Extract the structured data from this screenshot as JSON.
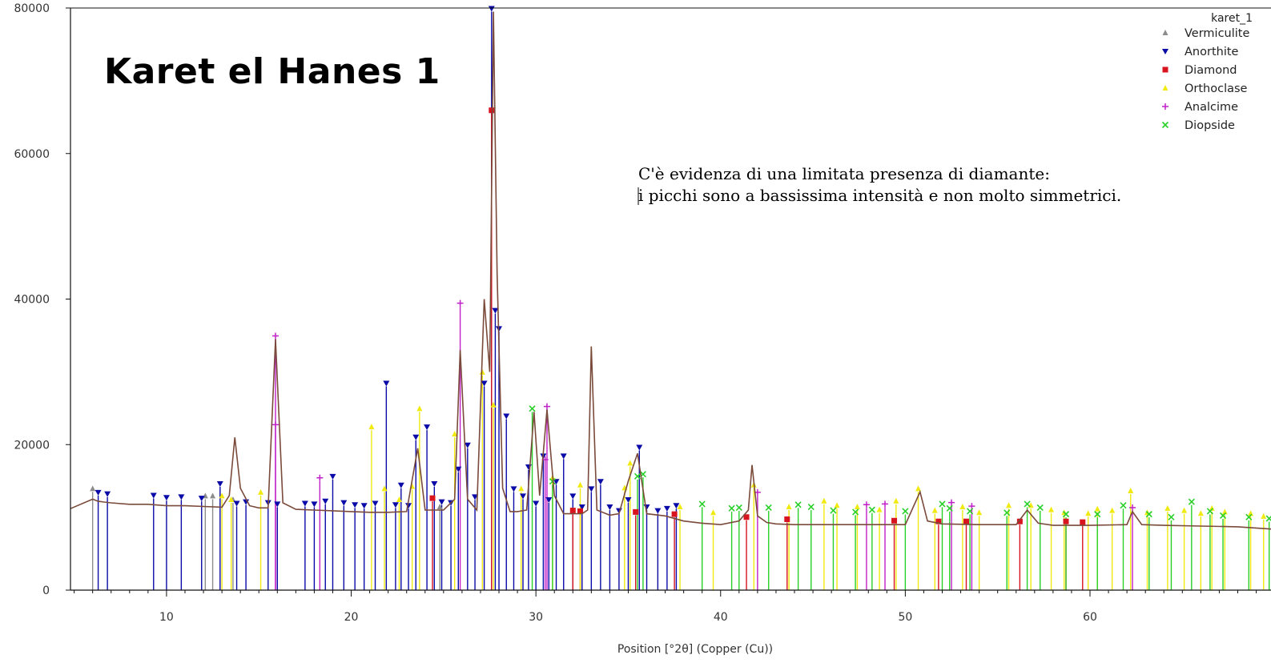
{
  "chart_data": {
    "type": "line",
    "title": "Karet el Hanes 1",
    "xlabel": "Position [°2θ] (Copper (Cu))",
    "ylabel": "",
    "xlim": [
      4.8,
      69.8
    ],
    "ylim": [
      0,
      80000
    ],
    "xticks": [
      10,
      20,
      30,
      40,
      50,
      60
    ],
    "yticks": [
      0,
      20000,
      40000,
      60000,
      80000
    ],
    "grid": false,
    "legend_placement": "top-right",
    "legend_title": "karet_1",
    "note_lines": [
      "C'è evidenza di una limitata presenza di diamante:",
      "i picchi sono a bassissima intensità e non molto simmetrici."
    ],
    "series": [
      {
        "name": "karet_1",
        "color": "#7a4a3a",
        "x": [
          4.8,
          6.0,
          6.3,
          7.0,
          8.0,
          9.0,
          10.0,
          11.0,
          12.0,
          13.0,
          13.4,
          13.7,
          14.0,
          14.5,
          15.0,
          15.5,
          15.9,
          16.3,
          17.0,
          18.0,
          19.0,
          20.0,
          21.0,
          22.0,
          23.0,
          23.6,
          24.0,
          25.0,
          25.6,
          25.9,
          26.3,
          26.8,
          27.2,
          27.5,
          27.7,
          27.9,
          28.2,
          28.6,
          29.0,
          29.5,
          29.9,
          30.2,
          30.6,
          31.0,
          31.5,
          32.0,
          32.5,
          32.8,
          33.0,
          33.3,
          34.0,
          34.5,
          35.0,
          35.5,
          36.0,
          37.0,
          38.0,
          39.0,
          40.0,
          41.0,
          41.5,
          41.7,
          42.0,
          42.5,
          43.0,
          44.0,
          46.0,
          48.0,
          50.0,
          50.8,
          51.2,
          52.0,
          54.0,
          56.0,
          56.6,
          57.2,
          58.0,
          60.0,
          62.0,
          62.3,
          62.8,
          64.0,
          66.0,
          68.0,
          69.8
        ],
        "y": [
          11200,
          12500,
          12200,
          12000,
          11800,
          11800,
          11600,
          11600,
          11500,
          11400,
          13000,
          21000,
          14000,
          11600,
          11300,
          11300,
          34500,
          12000,
          11100,
          11000,
          10900,
          10800,
          10700,
          10700,
          10800,
          19500,
          11000,
          11000,
          12500,
          33000,
          12500,
          11000,
          40000,
          30000,
          79500,
          43500,
          14000,
          10800,
          10800,
          11000,
          24500,
          13000,
          24800,
          13000,
          10500,
          10500,
          10500,
          11000,
          33500,
          11000,
          10300,
          10500,
          15000,
          18800,
          10500,
          10200,
          9500,
          9200,
          9000,
          9500,
          11000,
          17200,
          10200,
          9300,
          9100,
          9000,
          9000,
          9000,
          9000,
          13500,
          9500,
          9100,
          9000,
          9000,
          11000,
          9200,
          8900,
          8900,
          9000,
          10800,
          9000,
          8900,
          8800,
          8700,
          8400
        ]
      },
      {
        "name": "Vermiculite",
        "color": "#8c8c8c",
        "x": [
          6.0,
          12.1,
          12.5,
          13.6,
          24.8
        ],
        "y": [
          13500,
          12500,
          12500,
          12000,
          11000
        ]
      },
      {
        "name": "Anorthite",
        "color": "#0a0aa8",
        "x": [
          6.3,
          6.8,
          9.3,
          10.0,
          10.8,
          11.9,
          12.9,
          13.8,
          14.3,
          15.5,
          16.0,
          17.5,
          18.0,
          18.6,
          19.0,
          19.6,
          20.2,
          20.7,
          21.3,
          21.9,
          22.4,
          22.7,
          23.1,
          23.5,
          24.1,
          24.5,
          24.9,
          25.4,
          25.8,
          26.3,
          26.7,
          27.2,
          27.6,
          27.8,
          28.0,
          28.4,
          28.8,
          29.3,
          29.6,
          30.0,
          30.4,
          30.7,
          31.1,
          31.5,
          32.0,
          32.5,
          33.0,
          33.5,
          34.0,
          34.5,
          35.0,
          35.6,
          36.0,
          36.6,
          37.1,
          37.6
        ],
        "y": [
          13000,
          12800,
          12600,
          12300,
          12400,
          12200,
          14200,
          11500,
          11700,
          11600,
          11400,
          11500,
          11400,
          11800,
          15200,
          11600,
          11300,
          11200,
          11500,
          28000,
          11300,
          14000,
          11200,
          20600,
          22000,
          14200,
          11700,
          11600,
          16200,
          19500,
          12400,
          28000,
          79500,
          38000,
          35500,
          23500,
          13500,
          12500,
          16500,
          11500,
          18000,
          12000,
          14500,
          18000,
          12500,
          11000,
          13500,
          14500,
          11000,
          10500,
          12000,
          19200,
          11000,
          10500,
          10800,
          11200
        ]
      },
      {
        "name": "Diamond",
        "color": "#d8141e",
        "x": [
          24.4,
          27.6,
          32.0,
          32.4,
          35.4,
          37.5,
          41.4,
          43.6,
          49.4,
          51.8,
          53.3,
          56.2,
          58.7,
          59.6
        ],
        "y": [
          12200,
          65500,
          10500,
          10400,
          10300,
          10000,
          9600,
          9300,
          9100,
          9000,
          9000,
          9000,
          9000,
          8900
        ]
      },
      {
        "name": "Orthoclase",
        "color": "#f0ea10",
        "x": [
          13.0,
          13.5,
          15.1,
          21.1,
          21.8,
          22.6,
          23.3,
          23.7,
          25.6,
          27.1,
          27.7,
          29.2,
          30.9,
          32.4,
          34.8,
          35.1,
          37.8,
          39.6,
          41.8,
          43.7,
          45.6,
          46.3,
          47.4,
          48.6,
          49.5,
          50.7,
          51.6,
          53.1,
          54.0,
          55.6,
          56.8,
          57.9,
          58.6,
          59.9,
          60.4,
          61.2,
          62.2,
          63.1,
          64.2,
          65.1,
          66.0,
          66.6,
          67.3,
          68.7,
          69.4
        ],
        "y": [
          12500,
          12000,
          13000,
          22000,
          13500,
          12000,
          13800,
          24500,
          21000,
          29500,
          25000,
          13500,
          15000,
          14000,
          13600,
          17000,
          11000,
          10200,
          14000,
          11000,
          11800,
          11200,
          11000,
          10600,
          11800,
          13500,
          10500,
          11000,
          10200,
          11200,
          11200,
          10600,
          10200,
          10100,
          10700,
          10500,
          13200,
          10200,
          10800,
          10500,
          10100,
          10800,
          10300,
          10100,
          9700
        ]
      },
      {
        "name": "Analcime",
        "color": "#c020c8",
        "x": [
          15.9,
          15.9,
          18.3,
          25.9,
          30.6,
          30.5,
          42.0,
          47.9,
          48.9,
          52.5,
          53.6,
          62.3
        ],
        "y": [
          34500,
          22300,
          15000,
          39000,
          24800,
          17500,
          13000,
          11300,
          11400,
          11600,
          11100,
          10900
        ]
      },
      {
        "name": "Diopside",
        "color": "#28d028",
        "x": [
          29.8,
          30.9,
          35.5,
          35.8,
          39.0,
          40.6,
          41.0,
          42.6,
          44.2,
          44.9,
          46.1,
          47.3,
          48.2,
          50.0,
          52.0,
          52.4,
          53.5,
          55.5,
          56.6,
          57.3,
          58.7,
          60.4,
          61.8,
          63.2,
          64.4,
          65.5,
          66.5,
          67.2,
          68.6,
          69.7
        ],
        "y": [
          24500,
          14500,
          15200,
          15500,
          11400,
          10800,
          10900,
          10900,
          11300,
          11000,
          10500,
          10300,
          10600,
          10400,
          11400,
          10800,
          10400,
          10200,
          11400,
          10900,
          10000,
          10000,
          11200,
          10000,
          9600,
          11700,
          10400,
          9800,
          9600,
          9400
        ]
      }
    ]
  }
}
